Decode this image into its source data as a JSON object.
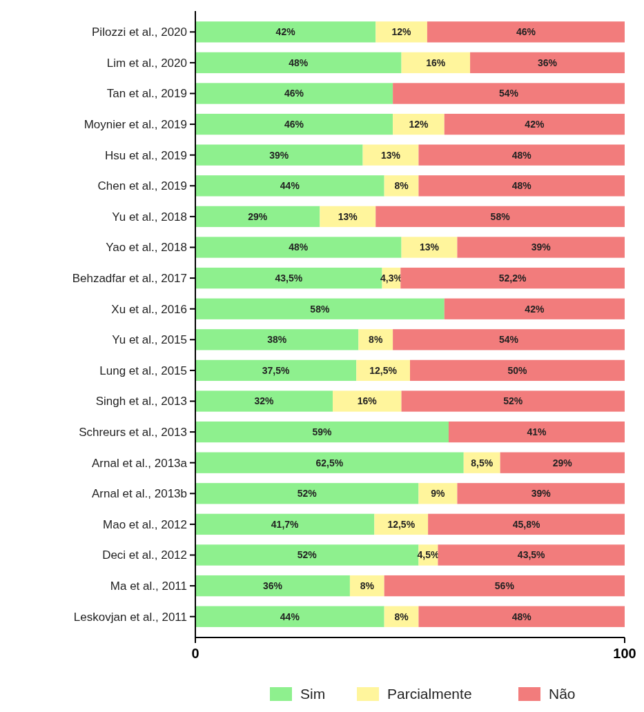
{
  "chart_data": {
    "type": "bar",
    "orientation": "horizontal",
    "stacked": true,
    "categories": [
      "Pilozzi et al., 2020",
      "Lim et al., 2020",
      "Tan et al., 2019",
      "Moynier et al., 2019",
      "Hsu et al., 2019",
      "Chen et al., 2019",
      "Yu et al., 2018",
      "Yao et al., 2018",
      "Behzadfar et al., 2017",
      "Xu et al., 2016",
      "Yu et al., 2015",
      "Lung et al., 2015",
      "Singh et al., 2013",
      "Schreurs et al., 2013",
      "Arnal et al., 2013a",
      "Arnal et al., 2013b",
      "Mao et al., 2012",
      "Deci et al., 2012",
      "Ma et al., 2011",
      "Leskovjan et al., 2011"
    ],
    "series": [
      {
        "name": "Sim",
        "color": "#8ef08e",
        "values": [
          42,
          48,
          46,
          46,
          39,
          44,
          29,
          48,
          43.5,
          58,
          38,
          37.5,
          32,
          59,
          62.5,
          52,
          41.7,
          52,
          36,
          44
        ],
        "value_labels": [
          "42%",
          "48%",
          "46%",
          "46%",
          "39%",
          "44%",
          "29%",
          "48%",
          "43,5%",
          "58%",
          "38%",
          "37,5%",
          "32%",
          "59%",
          "62,5%",
          "52%",
          "41,7%",
          "52%",
          "36%",
          "44%"
        ]
      },
      {
        "name": "Parcialmente",
        "color": "#fff59c",
        "values": [
          12,
          16,
          null,
          12,
          13,
          8,
          13,
          13,
          4.3,
          null,
          8,
          12.5,
          16,
          null,
          8.5,
          9,
          12.5,
          4.5,
          8,
          8
        ],
        "value_labels": [
          "12%",
          "16%",
          null,
          "12%",
          "13%",
          "8%",
          "13%",
          "13%",
          "4,3%",
          null,
          "8%",
          "12,5%",
          "16%",
          null,
          "8,5%",
          "9%",
          "12,5%",
          "4,5%",
          "8%",
          "8%"
        ]
      },
      {
        "name": "Não",
        "color": "#f27c7c",
        "values": [
          46,
          36,
          54,
          42,
          48,
          48,
          58,
          39,
          52.2,
          42,
          54,
          50,
          52,
          41,
          29,
          39,
          45.8,
          43.5,
          56,
          48
        ],
        "value_labels": [
          "46%",
          "36%",
          "54%",
          "42%",
          "48%",
          "48%",
          "58%",
          "39%",
          "52,2%",
          "42%",
          "54%",
          "50%",
          "52%",
          "41%",
          "29%",
          "39%",
          "45,8%",
          "43,5%",
          "56%",
          "48%"
        ]
      }
    ],
    "xlim": [
      0,
      100
    ],
    "xticks": [
      0,
      100
    ],
    "legend": "bottom"
  }
}
